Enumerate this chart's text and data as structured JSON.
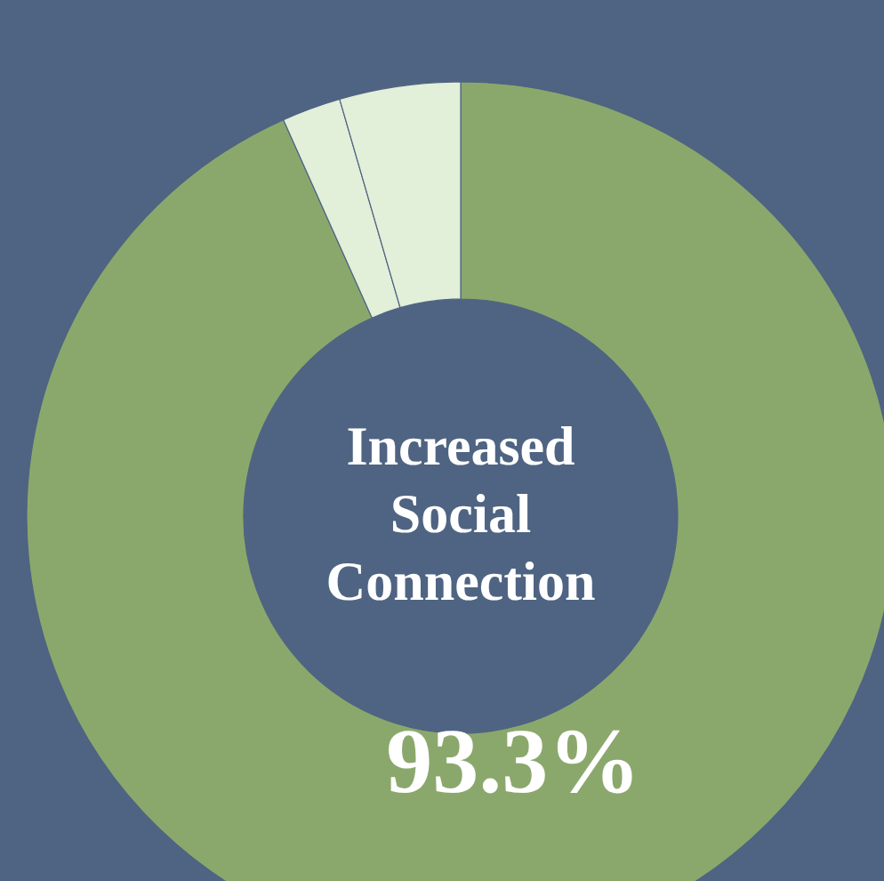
{
  "chart_data": {
    "type": "donut",
    "title": "Increased Social Connection",
    "categories": [
      null,
      null,
      null
    ],
    "values": [
      93.3,
      2.2,
      4.5
    ],
    "colors": [
      "#8ba86c",
      "#e2efd9",
      "#e2efd9"
    ],
    "value_labels": [
      "93.3%",
      null,
      null
    ]
  }
}
